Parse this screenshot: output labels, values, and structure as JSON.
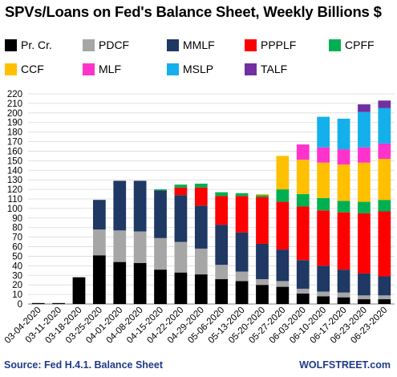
{
  "chart_data": {
    "type": "bar",
    "stacked": true,
    "title": "SPVs/Loans  on Fed's Balance Sheet, Weekly Billions $",
    "categories": [
      "03-04-2020",
      "03-11-2020",
      "03-18-2020",
      "03-25-2020",
      "04-01-2020",
      "04-08-2020",
      "04-15-2020",
      "04-22-2020",
      "04-29-2020",
      "05-06-2020",
      "05-13-2020",
      "05-20-2020",
      "05-27-2020",
      "06-03-2020",
      "06-10-2020",
      "06-17-2020",
      "06-23-2020",
      "06-23-2020"
    ],
    "ylim": [
      0,
      220
    ],
    "yticks": [
      0,
      10,
      20,
      30,
      40,
      50,
      60,
      70,
      80,
      90,
      100,
      110,
      120,
      130,
      140,
      150,
      160,
      170,
      180,
      190,
      200,
      210,
      220
    ],
    "grid": true,
    "legend": "top",
    "series": [
      {
        "name": "Pr. Cr.",
        "color": "#000000",
        "values": [
          1,
          1,
          28,
          51,
          44,
          43,
          36,
          33,
          31,
          26,
          24,
          20,
          18,
          11,
          8,
          7,
          5,
          5
        ]
      },
      {
        "name": "PDCF",
        "color": "#a6a6a6",
        "values": [
          0,
          0,
          0,
          27,
          33,
          33,
          33,
          32,
          27,
          15,
          10,
          6,
          6,
          5,
          5,
          5,
          4,
          4
        ]
      },
      {
        "name": "MMLF",
        "color": "#1f3864",
        "values": [
          0,
          0,
          0,
          31,
          52,
          53,
          50,
          49,
          45,
          42,
          41,
          37,
          33,
          30,
          27,
          24,
          23,
          20
        ]
      },
      {
        "name": "PPPLF",
        "color": "#ff0000",
        "values": [
          0,
          0,
          0,
          0,
          0,
          0,
          0,
          8,
          19,
          30,
          38,
          49,
          50,
          56,
          58,
          60,
          63,
          68
        ]
      },
      {
        "name": "CPFF",
        "color": "#00b050",
        "values": [
          0,
          0,
          0,
          0,
          0,
          0,
          1,
          3,
          4,
          4,
          3,
          2,
          13,
          13,
          13,
          12,
          12,
          12
        ]
      },
      {
        "name": "CCF",
        "color": "#ffc000",
        "values": [
          0,
          0,
          0,
          0,
          0,
          0,
          0,
          0,
          0,
          0,
          0,
          1,
          35,
          36,
          37,
          38,
          41,
          43
        ]
      },
      {
        "name": "MLF",
        "color": "#ff33cc",
        "values": [
          0,
          0,
          0,
          0,
          0,
          0,
          0,
          0,
          0,
          0,
          0,
          0,
          0,
          16,
          16,
          16,
          16,
          16
        ]
      },
      {
        "name": "MSLP",
        "color": "#13b0eb",
        "values": [
          0,
          0,
          0,
          0,
          0,
          0,
          0,
          0,
          0,
          0,
          0,
          0,
          0,
          0,
          32,
          32,
          37,
          37
        ]
      },
      {
        "name": "TALF",
        "color": "#7030a0",
        "values": [
          0,
          0,
          0,
          0,
          0,
          0,
          0,
          0,
          0,
          0,
          0,
          0,
          0,
          0,
          0,
          0,
          8,
          8
        ]
      }
    ]
  },
  "footer": {
    "source": "Source: Fed H.4.1. Balance Sheet",
    "brand": "WOLFSTREET.com"
  }
}
